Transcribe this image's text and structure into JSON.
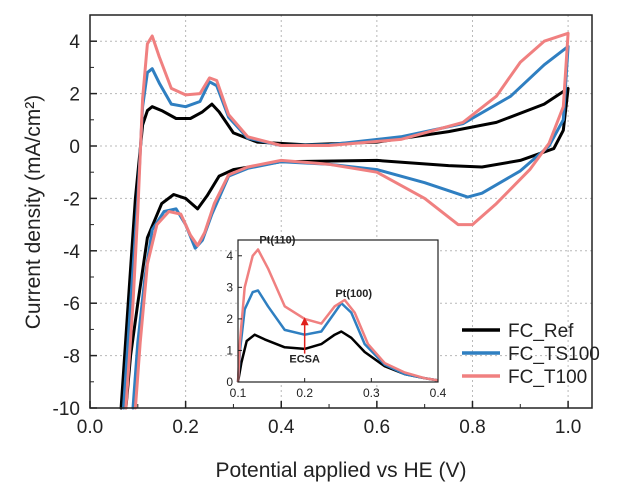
{
  "chart_data": [
    {
      "type": "line",
      "xlabel": "Potential applied vs HE (V)",
      "ylabel": "Current density (mA/cm²)",
      "xlim": [
        0.0,
        1.05
      ],
      "ylim": [
        -10,
        5
      ],
      "xticks": [
        "0.0",
        "0.2",
        "0.4",
        "0.6",
        "0.8",
        "1.0"
      ],
      "yticks": [
        "4",
        "2",
        "0",
        "-2",
        "-4",
        "-6",
        "-8",
        "-10"
      ],
      "grid": true,
      "legend_position": "bottom-right",
      "series": [
        {
          "name": "FC_Ref",
          "color": "#000000",
          "anodic": [
            [
              0.065,
              -10
            ],
            [
              0.08,
              -6
            ],
            [
              0.095,
              -2
            ],
            [
              0.11,
              0.8
            ],
            [
              0.12,
              1.35
            ],
            [
              0.13,
              1.5
            ],
            [
              0.15,
              1.35
            ],
            [
              0.18,
              1.05
            ],
            [
              0.21,
              1.05
            ],
            [
              0.235,
              1.3
            ],
            [
              0.255,
              1.6
            ],
            [
              0.27,
              1.3
            ],
            [
              0.3,
              0.5
            ],
            [
              0.35,
              0.15
            ],
            [
              0.45,
              0.05
            ],
            [
              0.6,
              0.15
            ],
            [
              0.75,
              0.55
            ],
            [
              0.85,
              0.9
            ],
            [
              0.95,
              1.6
            ],
            [
              1.0,
              2.2
            ]
          ],
          "cathodic": [
            [
              1.0,
              2.2
            ],
            [
              0.99,
              0.6
            ],
            [
              0.97,
              -0.1
            ],
            [
              0.9,
              -0.55
            ],
            [
              0.82,
              -0.8
            ],
            [
              0.75,
              -0.75
            ],
            [
              0.6,
              -0.55
            ],
            [
              0.4,
              -0.6
            ],
            [
              0.3,
              -0.9
            ],
            [
              0.27,
              -1.15
            ],
            [
              0.245,
              -1.9
            ],
            [
              0.225,
              -2.4
            ],
            [
              0.2,
              -2.0
            ],
            [
              0.175,
              -1.85
            ],
            [
              0.15,
              -2.2
            ],
            [
              0.12,
              -3.5
            ],
            [
              0.1,
              -6
            ],
            [
              0.085,
              -8
            ],
            [
              0.075,
              -10
            ]
          ]
        },
        {
          "name": "FC_TS100",
          "color": "#2f7fc1",
          "anodic": [
            [
              0.07,
              -10
            ],
            [
              0.085,
              -6
            ],
            [
              0.1,
              -2
            ],
            [
              0.11,
              1.5
            ],
            [
              0.12,
              2.8
            ],
            [
              0.13,
              2.95
            ],
            [
              0.145,
              2.4
            ],
            [
              0.17,
              1.6
            ],
            [
              0.2,
              1.5
            ],
            [
              0.23,
              1.7
            ],
            [
              0.25,
              2.45
            ],
            [
              0.265,
              2.3
            ],
            [
              0.29,
              1.1
            ],
            [
              0.33,
              0.3
            ],
            [
              0.4,
              0.02
            ],
            [
              0.5,
              0.05
            ],
            [
              0.65,
              0.35
            ],
            [
              0.78,
              0.85
            ],
            [
              0.88,
              1.9
            ],
            [
              0.95,
              3.1
            ],
            [
              1.0,
              3.8
            ]
          ],
          "cathodic": [
            [
              1.0,
              3.8
            ],
            [
              0.99,
              1.0
            ],
            [
              0.96,
              0.0
            ],
            [
              0.9,
              -0.95
            ],
            [
              0.82,
              -1.8
            ],
            [
              0.79,
              -1.95
            ],
            [
              0.7,
              -1.4
            ],
            [
              0.6,
              -0.9
            ],
            [
              0.5,
              -0.7
            ],
            [
              0.4,
              -0.6
            ],
            [
              0.33,
              -0.85
            ],
            [
              0.29,
              -1.15
            ],
            [
              0.255,
              -2.6
            ],
            [
              0.235,
              -3.6
            ],
            [
              0.22,
              -3.9
            ],
            [
              0.2,
              -3.0
            ],
            [
              0.18,
              -2.4
            ],
            [
              0.155,
              -2.5
            ],
            [
              0.13,
              -3.2
            ],
            [
              0.115,
              -5
            ],
            [
              0.1,
              -7.5
            ],
            [
              0.09,
              -10
            ]
          ]
        },
        {
          "name": "FC_T100",
          "color": "#f08080",
          "anodic": [
            [
              0.075,
              -10
            ],
            [
              0.09,
              -6
            ],
            [
              0.1,
              -2.5
            ],
            [
              0.11,
              1.8
            ],
            [
              0.12,
              3.9
            ],
            [
              0.13,
              4.2
            ],
            [
              0.145,
              3.4
            ],
            [
              0.17,
              2.2
            ],
            [
              0.2,
              1.95
            ],
            [
              0.23,
              2.0
            ],
            [
              0.25,
              2.6
            ],
            [
              0.265,
              2.5
            ],
            [
              0.29,
              1.2
            ],
            [
              0.33,
              0.35
            ],
            [
              0.4,
              0.02
            ],
            [
              0.5,
              0.02
            ],
            [
              0.65,
              0.25
            ],
            [
              0.78,
              0.9
            ],
            [
              0.85,
              1.9
            ],
            [
              0.9,
              3.2
            ],
            [
              0.95,
              4.0
            ],
            [
              1.0,
              4.3
            ]
          ],
          "cathodic": [
            [
              1.0,
              4.3
            ],
            [
              0.99,
              1.5
            ],
            [
              0.96,
              0.1
            ],
            [
              0.92,
              -0.9
            ],
            [
              0.85,
              -2.2
            ],
            [
              0.8,
              -3.0
            ],
            [
              0.77,
              -3.0
            ],
            [
              0.7,
              -2.0
            ],
            [
              0.6,
              -1.0
            ],
            [
              0.5,
              -0.7
            ],
            [
              0.4,
              -0.55
            ],
            [
              0.33,
              -0.8
            ],
            [
              0.29,
              -1.1
            ],
            [
              0.26,
              -2.2
            ],
            [
              0.24,
              -3.3
            ],
            [
              0.225,
              -3.8
            ],
            [
              0.21,
              -3.4
            ],
            [
              0.19,
              -2.6
            ],
            [
              0.165,
              -2.5
            ],
            [
              0.14,
              -3.0
            ],
            [
              0.12,
              -4.5
            ],
            [
              0.105,
              -7.5
            ],
            [
              0.095,
              -10
            ]
          ]
        }
      ]
    },
    {
      "type": "line",
      "role": "inset",
      "xlim": [
        0.1,
        0.4
      ],
      "ylim": [
        0,
        4.5
      ],
      "xticks": [
        "0.1",
        "0.2",
        "0.3",
        "0.4"
      ],
      "yticks": [
        "0",
        "1",
        "2",
        "3",
        "4"
      ],
      "annotations": [
        {
          "text": "Pt(110)",
          "x": 0.135,
          "y": 4.2
        },
        {
          "text": "Pt(100)",
          "x": 0.255,
          "y": 2.6
        },
        {
          "text": "ECSA",
          "x": 0.2,
          "y": 0.75
        }
      ],
      "arrow": {
        "x": 0.2,
        "y_from": 0.9,
        "y_to": 2.05,
        "color": "#e0201c"
      },
      "series": [
        {
          "name": "FC_Ref",
          "color": "#000000",
          "points": [
            [
              0.1,
              0.0
            ],
            [
              0.105,
              0.6
            ],
            [
              0.113,
              1.3
            ],
            [
              0.125,
              1.5
            ],
            [
              0.14,
              1.35
            ],
            [
              0.17,
              1.1
            ],
            [
              0.2,
              1.05
            ],
            [
              0.225,
              1.2
            ],
            [
              0.245,
              1.5
            ],
            [
              0.255,
              1.6
            ],
            [
              0.27,
              1.4
            ],
            [
              0.29,
              0.95
            ],
            [
              0.32,
              0.5
            ],
            [
              0.35,
              0.25
            ],
            [
              0.38,
              0.12
            ],
            [
              0.4,
              0.05
            ]
          ]
        },
        {
          "name": "FC_TS100",
          "color": "#2f7fc1",
          "points": [
            [
              0.1,
              0.0
            ],
            [
              0.103,
              1.0
            ],
            [
              0.11,
              2.3
            ],
            [
              0.122,
              2.85
            ],
            [
              0.13,
              2.9
            ],
            [
              0.145,
              2.4
            ],
            [
              0.17,
              1.65
            ],
            [
              0.2,
              1.5
            ],
            [
              0.225,
              1.6
            ],
            [
              0.245,
              2.2
            ],
            [
              0.255,
              2.5
            ],
            [
              0.27,
              2.2
            ],
            [
              0.29,
              1.2
            ],
            [
              0.32,
              0.55
            ],
            [
              0.35,
              0.25
            ],
            [
              0.38,
              0.12
            ],
            [
              0.4,
              0.05
            ]
          ]
        },
        {
          "name": "FC_T100",
          "color": "#f08080",
          "points": [
            [
              0.1,
              0.0
            ],
            [
              0.103,
              1.3
            ],
            [
              0.11,
              3.0
            ],
            [
              0.122,
              4.0
            ],
            [
              0.13,
              4.2
            ],
            [
              0.145,
              3.6
            ],
            [
              0.17,
              2.4
            ],
            [
              0.2,
              2.0
            ],
            [
              0.225,
              1.85
            ],
            [
              0.245,
              2.4
            ],
            [
              0.26,
              2.6
            ],
            [
              0.275,
              2.2
            ],
            [
              0.295,
              1.2
            ],
            [
              0.32,
              0.6
            ],
            [
              0.35,
              0.3
            ],
            [
              0.38,
              0.12
            ],
            [
              0.4,
              0.05
            ]
          ]
        }
      ]
    }
  ]
}
